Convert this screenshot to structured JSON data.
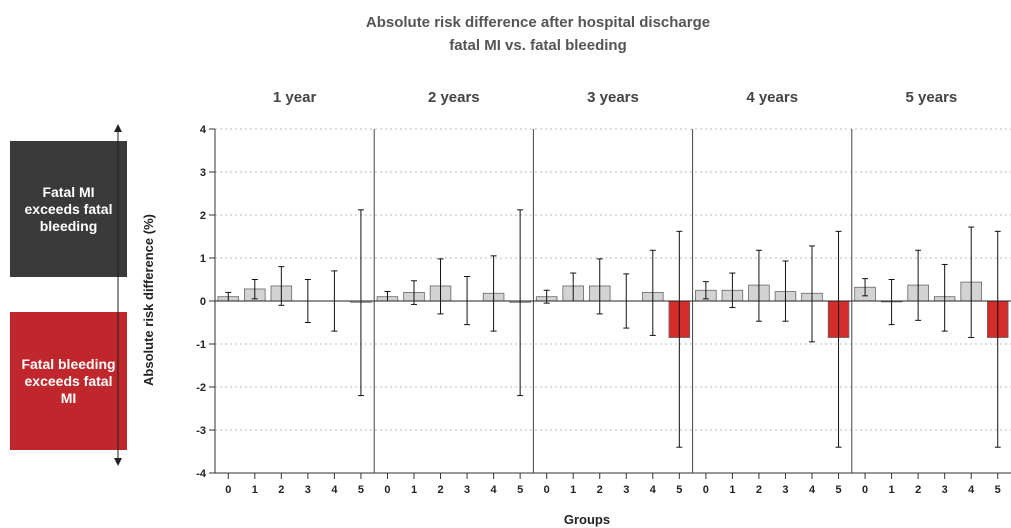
{
  "chart_data": {
    "type": "bar",
    "title": "Absolute risk difference after hospital discharge",
    "subtitle": "fatal MI vs. fatal bleeding",
    "xlabel": "Groups",
    "ylabel": "Absolute risk difference (%)",
    "ylim": [
      -4,
      4
    ],
    "yticks": [
      -4,
      -3,
      -2,
      -1,
      0,
      1,
      2,
      3,
      4
    ],
    "grid": true,
    "categories": [
      "0",
      "1",
      "2",
      "3",
      "4",
      "5"
    ],
    "side_labels": {
      "positive": "Fatal MI exceeds fatal bleeding",
      "negative": "Fatal bleeding exceeds fatal MI"
    },
    "colors": {
      "positive_bar": "#d3d3d3",
      "negative_bar": "#d42b2b",
      "mi_box": "#3a3a3a",
      "bleeding_box": "#c0272d"
    },
    "panels": [
      {
        "name": "1 year",
        "values": [
          0.1,
          0.28,
          0.35,
          0.0,
          0.0,
          -0.03
        ],
        "lower": [
          0.0,
          0.05,
          -0.1,
          -0.5,
          -0.7,
          -2.2
        ],
        "upper": [
          0.2,
          0.5,
          0.8,
          0.5,
          0.7,
          2.12
        ]
      },
      {
        "name": "2 years",
        "values": [
          0.1,
          0.2,
          0.35,
          0.0,
          0.18,
          -0.03
        ],
        "lower": [
          0.0,
          -0.08,
          -0.3,
          -0.55,
          -0.7,
          -2.2
        ],
        "upper": [
          0.22,
          0.47,
          0.98,
          0.57,
          1.05,
          2.12
        ]
      },
      {
        "name": "3 years",
        "values": [
          0.1,
          0.35,
          0.35,
          0.0,
          0.2,
          -0.85
        ],
        "lower": [
          -0.05,
          0.0,
          -0.3,
          -0.63,
          -0.8,
          -3.4
        ],
        "upper": [
          0.25,
          0.65,
          0.98,
          0.63,
          1.18,
          1.62
        ]
      },
      {
        "name": "4 years",
        "values": [
          0.25,
          0.25,
          0.37,
          0.22,
          0.18,
          -0.85
        ],
        "lower": [
          0.05,
          -0.15,
          -0.47,
          -0.47,
          -0.95,
          -3.4
        ],
        "upper": [
          0.45,
          0.65,
          1.18,
          0.93,
          1.28,
          1.62
        ]
      },
      {
        "name": "5 years",
        "values": [
          0.32,
          -0.02,
          0.37,
          0.1,
          0.44,
          -0.85
        ],
        "lower": [
          0.12,
          -0.55,
          -0.45,
          -0.7,
          -0.85,
          -3.4
        ],
        "upper": [
          0.52,
          0.5,
          1.18,
          0.85,
          1.72,
          1.62
        ]
      }
    ]
  }
}
